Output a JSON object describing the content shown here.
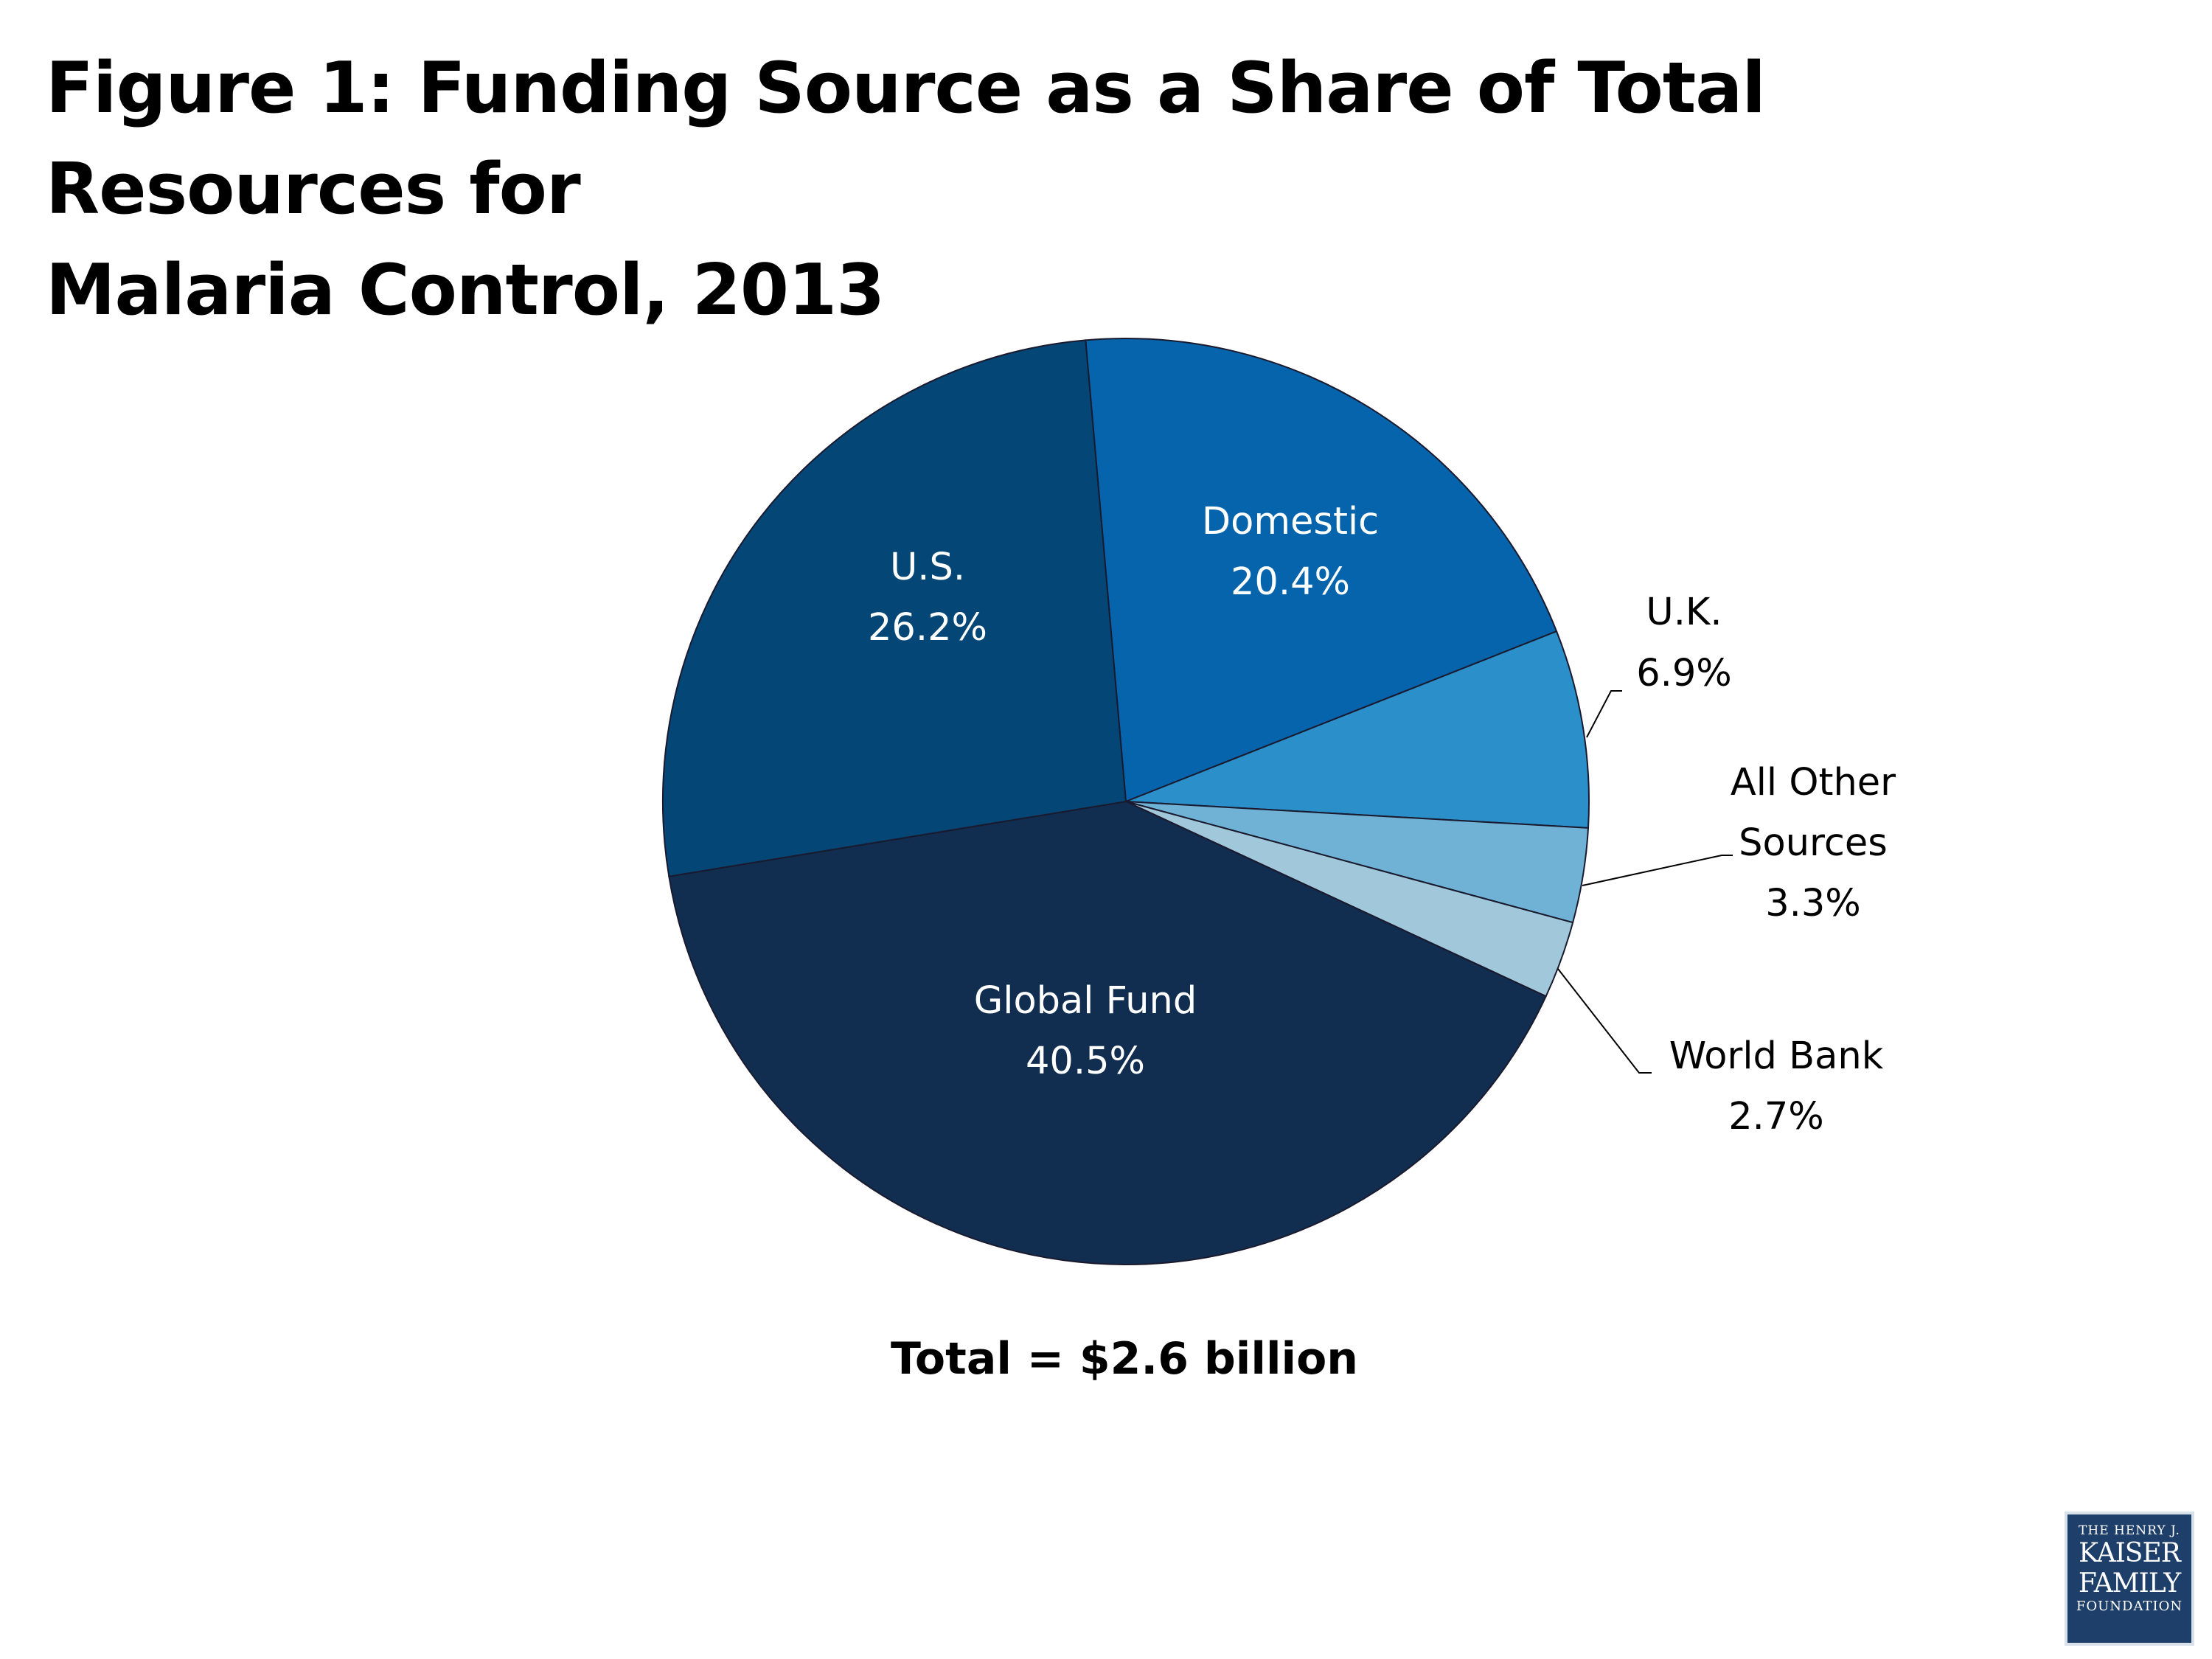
{
  "title": {
    "line1": "Figure 1: Funding Source as a Share of Total Resources for",
    "line2": "Malaria Control, 2013"
  },
  "chart_data": {
    "type": "pie",
    "title": "Figure 1: Funding Source as a Share of Total Resources for Malaria Control, 2013",
    "unit": "%",
    "slices": [
      {
        "label": "Domestic",
        "value": 20.4,
        "display": "20.4%",
        "color": "#0664ad",
        "label_color": "#ffffff"
      },
      {
        "label": "U.K.",
        "value": 6.9,
        "display": "6.9%",
        "color": "#2b8fca",
        "label_color": "#000000"
      },
      {
        "label": "All Other Sources",
        "value": 3.3,
        "display": "3.3%",
        "color": "#70b2d6",
        "label_color": "#000000"
      },
      {
        "label": "World Bank",
        "value": 2.7,
        "display": "2.7%",
        "color": "#a0c7da",
        "label_color": "#000000"
      },
      {
        "label": "Global Fund",
        "value": 40.5,
        "display": "40.5%",
        "color": "#112e50",
        "label_color": "#ffffff"
      },
      {
        "label": "U.S.",
        "value": 26.2,
        "display": "26.2%",
        "color": "#044675",
        "label_color": "#ffffff"
      }
    ],
    "annotation": "Total = $2.6 billion"
  },
  "logo": {
    "line1": "THE HENRY J.",
    "line2": "KAISER",
    "line3": "FAMILY",
    "line4": "FOUNDATION"
  }
}
